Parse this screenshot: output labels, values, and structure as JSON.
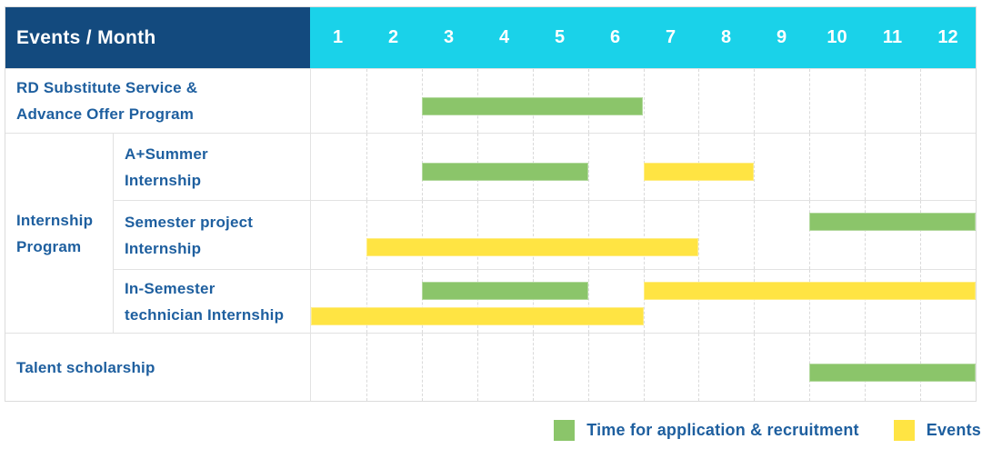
{
  "header": {
    "title": "Events / Month",
    "months": [
      "1",
      "2",
      "3",
      "4",
      "5",
      "6",
      "7",
      "8",
      "9",
      "10",
      "11",
      "12"
    ]
  },
  "colors": {
    "header_bg": "#134a7e",
    "months_bg": "#1ad2e9",
    "application": "#8bc56a",
    "event": "#ffe443",
    "label_text": "#1e5f9f",
    "grid_line": "#dadada"
  },
  "legend": {
    "items": [
      {
        "label": "Time for application & recruitment",
        "series": "application"
      },
      {
        "label": "Events",
        "series": "event"
      }
    ]
  },
  "chart_data": {
    "type": "bar",
    "subtype": "gantt-timeline",
    "title": "Events / Month",
    "x_categories": [
      "1",
      "2",
      "3",
      "4",
      "5",
      "6",
      "7",
      "8",
      "9",
      "10",
      "11",
      "12"
    ],
    "x_range": [
      1,
      12
    ],
    "grid": "dashed-monthly",
    "legend_position": "bottom-right",
    "legend": [
      "Time for application & recruitment",
      "Events"
    ],
    "group_label": "Internship Program",
    "group_label_lines": [
      "Internship",
      "Program"
    ],
    "rows": [
      {
        "group": "",
        "label": "RD Substitute Service & Advance Offer Program",
        "label_lines": [
          "RD Substitute Service &",
          "Advance Offer Program"
        ],
        "lanes": [
          [
            {
              "series": "application",
              "start_month": 3,
              "end_month": 6
            }
          ]
        ]
      },
      {
        "group": "Internship Program",
        "label": "A+Summer Internship",
        "label_lines": [
          "A+Summer",
          "Internship"
        ],
        "lanes": [
          [
            {
              "series": "application",
              "start_month": 3,
              "end_month": 5
            },
            {
              "series": "event",
              "start_month": 7,
              "end_month": 8
            }
          ]
        ]
      },
      {
        "group": "Internship Program",
        "label": "Semester project Internship",
        "label_lines": [
          "Semester project",
          "Internship"
        ],
        "lanes": [
          [
            {
              "series": "application",
              "start_month": 10,
              "end_month": 12
            }
          ],
          [
            {
              "series": "event",
              "start_month": 2,
              "end_month": 7
            }
          ]
        ]
      },
      {
        "group": "Internship Program",
        "label": "In-Semester technician Internship",
        "label_lines": [
          "In-Semester",
          "technician Internship"
        ],
        "lanes": [
          [
            {
              "series": "application",
              "start_month": 3,
              "end_month": 5
            },
            {
              "series": "event",
              "start_month": 7,
              "end_month": 12
            }
          ],
          [
            {
              "series": "event",
              "start_month": 1,
              "end_month": 6
            }
          ]
        ]
      },
      {
        "group": "",
        "label": "Talent scholarship",
        "label_lines": [
          "Talent scholarship"
        ],
        "lanes": [
          [
            {
              "series": "application",
              "start_month": 10,
              "end_month": 12
            }
          ]
        ]
      }
    ]
  }
}
